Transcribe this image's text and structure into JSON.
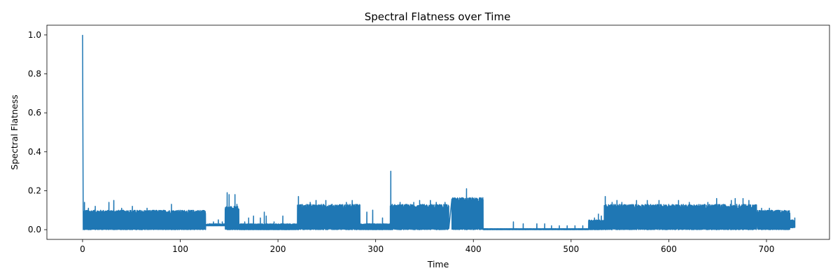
{
  "chart_data": {
    "type": "line",
    "title": "Spectral Flatness over Time",
    "xlabel": "Time",
    "ylabel": "Spectral Flatness",
    "xlim": [
      -36.5,
      764.5
    ],
    "ylim": [
      -0.05,
      1.05
    ],
    "x_ticks": [
      0,
      100,
      200,
      300,
      400,
      500,
      600,
      700
    ],
    "y_ticks": [
      0.0,
      0.2,
      0.4,
      0.6,
      0.8,
      1.0
    ],
    "x_tick_labels": [
      "0",
      "100",
      "200",
      "300",
      "400",
      "500",
      "600",
      "700"
    ],
    "y_tick_labels": [
      "0.0",
      "0.2",
      "0.4",
      "0.6",
      "0.8",
      "1.0"
    ],
    "grid": false,
    "legend": "none",
    "series": [
      {
        "color": "#1f77b4",
        "oscillation_segments": [
          {
            "x0": 1,
            "x1": 126,
            "low": 0.0,
            "high": 0.1,
            "peaks": [
              [
                2,
                0.14
              ],
              [
                6,
                0.11
              ],
              [
                13,
                0.12
              ],
              [
                27,
                0.14
              ],
              [
                32,
                0.15
              ],
              [
                40,
                0.11
              ],
              [
                51,
                0.12
              ],
              [
                66,
                0.11
              ],
              [
                91,
                0.13
              ]
            ]
          },
          {
            "x0": 126,
            "x1": 146,
            "low": 0.02,
            "high": 0.03,
            "peaks": [
              [
                134,
                0.04
              ],
              [
                139,
                0.05
              ],
              [
                143,
                0.04
              ]
            ]
          },
          {
            "x0": 146,
            "x1": 160,
            "low": 0.0,
            "high": 0.12,
            "peaks": [
              [
                148,
                0.19
              ],
              [
                150,
                0.18
              ],
              [
                156,
                0.18
              ],
              [
                158,
                0.13
              ]
            ]
          },
          {
            "x0": 160,
            "x1": 220,
            "low": 0.0,
            "high": 0.03,
            "peaks": [
              [
                166,
                0.04
              ],
              [
                170,
                0.06
              ],
              [
                172,
                0.03
              ],
              [
                175,
                0.07
              ],
              [
                182,
                0.06
              ],
              [
                186,
                0.09
              ],
              [
                188,
                0.07
              ],
              [
                196,
                0.04
              ],
              [
                205,
                0.07
              ],
              [
                212,
                0.03
              ]
            ]
          },
          {
            "x0": 220,
            "x1": 284,
            "low": 0.0,
            "high": 0.13,
            "peaks": [
              [
                221,
                0.17
              ],
              [
                233,
                0.14
              ],
              [
                239,
                0.15
              ],
              [
                249,
                0.15
              ],
              [
                270,
                0.14
              ],
              [
                276,
                0.15
              ],
              [
                283,
                0.1
              ]
            ]
          },
          {
            "x0": 284,
            "x1": 315,
            "low": 0.0,
            "high": 0.03,
            "peaks": [
              [
                291,
                0.09
              ],
              [
                297,
                0.1
              ],
              [
                307,
                0.06
              ]
            ]
          },
          {
            "x0": 315,
            "x1": 375,
            "low": 0.0,
            "high": 0.13,
            "peaks": [
              [
                315.5,
                0.3
              ],
              [
                317,
                0.13
              ],
              [
                325,
                0.14
              ],
              [
                339,
                0.14
              ],
              [
                345,
                0.15
              ],
              [
                356,
                0.15
              ],
              [
                362,
                0.14
              ],
              [
                371,
                0.14
              ]
            ]
          },
          {
            "x0": 378,
            "x1": 410,
            "low": 0.0,
            "high": 0.165,
            "peaks": [
              [
                393,
                0.21
              ]
            ]
          },
          {
            "x0": 410,
            "x1": 518,
            "low": 0.0,
            "high": 0.005,
            "peaks": [
              [
                441,
                0.04
              ],
              [
                451,
                0.03
              ],
              [
                465,
                0.03
              ],
              [
                473,
                0.03
              ],
              [
                480,
                0.02
              ],
              [
                488,
                0.02
              ],
              [
                496,
                0.02
              ],
              [
                504,
                0.02
              ],
              [
                512,
                0.02
              ]
            ]
          },
          {
            "x0": 518,
            "x1": 534,
            "low": 0.0,
            "high": 0.05,
            "peaks": [
              [
                524,
                0.06
              ],
              [
                528,
                0.08
              ],
              [
                531,
                0.07
              ]
            ]
          },
          {
            "x0": 534,
            "x1": 690,
            "low": 0.0,
            "high": 0.13,
            "peaks": [
              [
                535,
                0.17
              ],
              [
                542,
                0.14
              ],
              [
                547,
                0.15
              ],
              [
                552,
                0.14
              ],
              [
                567,
                0.15
              ],
              [
                578,
                0.15
              ],
              [
                590,
                0.15
              ],
              [
                610,
                0.15
              ],
              [
                621,
                0.14
              ],
              [
                640,
                0.14
              ],
              [
                649,
                0.16
              ],
              [
                664,
                0.15
              ],
              [
                668,
                0.16
              ],
              [
                676,
                0.16
              ],
              [
                682,
                0.15
              ]
            ]
          },
          {
            "x0": 691,
            "x1": 724,
            "low": 0.0,
            "high": 0.1,
            "peaks": [
              [
                695,
                0.11
              ],
              [
                703,
                0.11
              ]
            ]
          },
          {
            "x0": 724,
            "x1": 729,
            "low": 0.01,
            "high": 0.05,
            "peaks": [
              [
                727,
                0.04
              ],
              [
                729,
                0.06
              ]
            ]
          }
        ],
        "spikes": [
          [
            0,
            1.0
          ],
          [
            0.7,
            0.0
          ]
        ]
      }
    ]
  }
}
